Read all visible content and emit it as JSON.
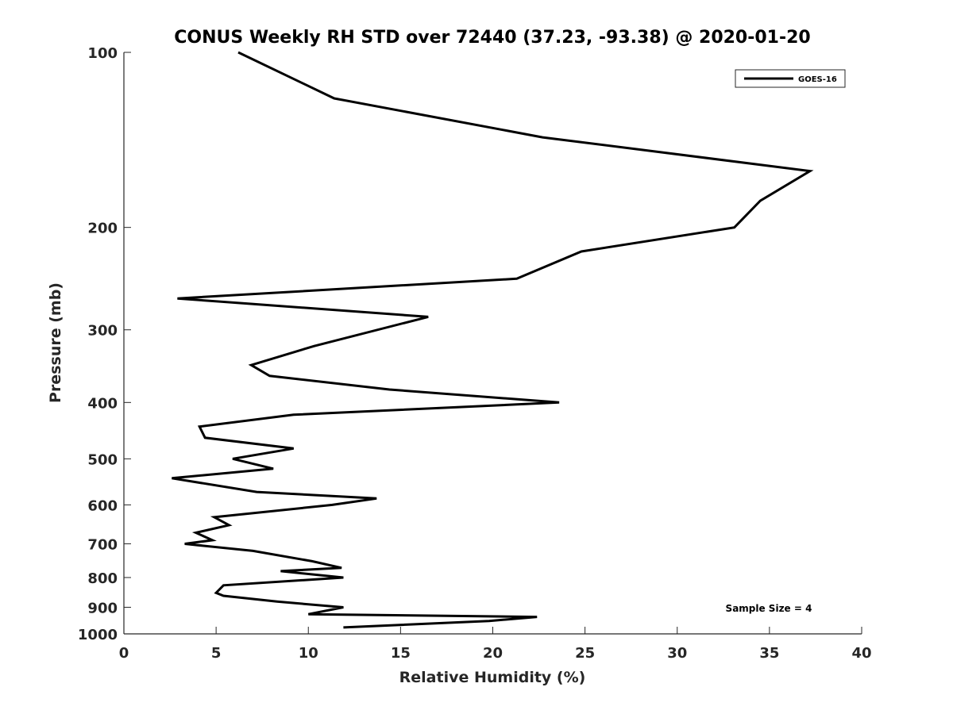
{
  "chart_data": {
    "type": "line",
    "title": "CONUS Weekly RH STD over 72440 (37.23, -93.38) @ 2020-01-20",
    "xlabel": "Relative Humidity (%)",
    "ylabel": "Pressure (mb)",
    "xlim": [
      0,
      40
    ],
    "ylim": [
      100,
      1000
    ],
    "y_scale": "log",
    "y_reversed": true,
    "grid": false,
    "x_ticks": [
      0,
      5,
      10,
      15,
      20,
      25,
      30,
      35,
      40
    ],
    "x_tick_labels": [
      "0",
      "5",
      "10",
      "15",
      "20",
      "25",
      "30",
      "35",
      "40"
    ],
    "y_ticks": [
      100,
      200,
      300,
      400,
      500,
      600,
      700,
      800,
      900,
      1000
    ],
    "y_tick_labels": [
      "100",
      "200",
      "300",
      "400",
      "500",
      "600",
      "700",
      "800",
      "900",
      "1000"
    ],
    "legend_position": "top-right",
    "series": [
      {
        "name": "GOES-16",
        "color": "#000000",
        "points": [
          [
            6.2,
            100
          ],
          [
            11.4,
            120
          ],
          [
            22.7,
            140
          ],
          [
            37.2,
            160
          ],
          [
            34.5,
            180
          ],
          [
            33.1,
            200
          ],
          [
            24.8,
            220
          ],
          [
            21.3,
            245
          ],
          [
            2.9,
            265
          ],
          [
            16.5,
            285
          ],
          [
            10.3,
            320
          ],
          [
            6.9,
            345
          ],
          [
            7.9,
            360
          ],
          [
            14.4,
            380
          ],
          [
            23.6,
            400
          ],
          [
            9.2,
            420
          ],
          [
            4.1,
            440
          ],
          [
            4.4,
            460
          ],
          [
            9.2,
            480
          ],
          [
            5.9,
            500
          ],
          [
            8.1,
            520
          ],
          [
            2.6,
            540
          ],
          [
            7.2,
            570
          ],
          [
            13.7,
            585
          ],
          [
            11.3,
            600
          ],
          [
            4.9,
            630
          ],
          [
            5.7,
            650
          ],
          [
            3.9,
            670
          ],
          [
            4.8,
            690
          ],
          [
            3.3,
            700
          ],
          [
            7.0,
            720
          ],
          [
            10.2,
            750
          ],
          [
            11.8,
            770
          ],
          [
            8.5,
            780
          ],
          [
            11.9,
            800
          ],
          [
            5.4,
            825
          ],
          [
            5.0,
            850
          ],
          [
            5.4,
            860
          ],
          [
            8.3,
            880
          ],
          [
            11.9,
            900
          ],
          [
            10.0,
            925
          ],
          [
            22.4,
            935
          ],
          [
            19.8,
            950
          ],
          [
            11.9,
            975
          ]
        ]
      }
    ],
    "annotations": [
      "Sample Size = 4"
    ]
  }
}
